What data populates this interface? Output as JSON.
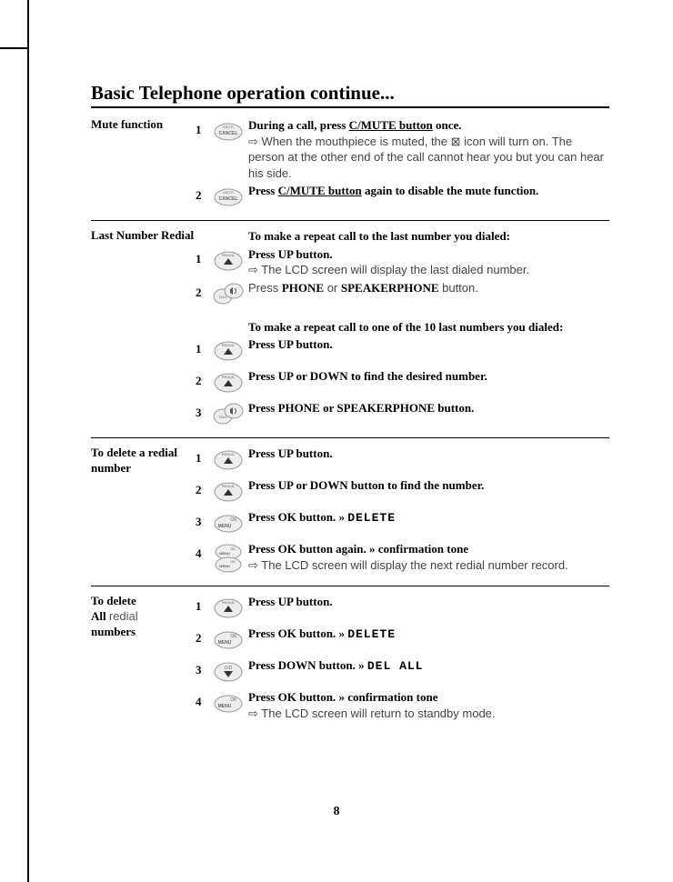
{
  "page": {
    "title": "Basic Telephone operation continue...",
    "number": "8"
  },
  "colors": {
    "text_body": "#444444",
    "text_bold": "#000000",
    "rule": "#000000",
    "bg": "#ffffff",
    "icon_stroke": "#888888"
  },
  "sections": [
    {
      "feature": "Mute function",
      "steps": [
        {
          "num": "1",
          "icon": "mute-cancel",
          "html": "<span class=\"bold\">During a call, press <span class=\"underline\">C/MUTE button</span> once.</span><br><span class=\"arrow\">⇨</span> When the mouthpiece is muted, the ⊠ icon will turn on. The person at the other end of the call cannot hear you but you can hear his side."
        },
        {
          "num": "2",
          "icon": "mute-cancel",
          "html": "<span class=\"bold\">Press <span class=\"underline\">C/MUTE button</span> again to disable the mute function.</span>"
        }
      ]
    },
    {
      "feature": "Last Number Redial",
      "headers_and_steps": [
        {
          "type": "header",
          "html": "To make a repeat call to the last number you dialed:"
        },
        {
          "type": "step",
          "num": "1",
          "icon": "redial-up",
          "html": "<span class=\"bold\">Press UP button.</span><br><span class=\"arrow\">⇨</span> The LCD screen will display the last dialed number."
        },
        {
          "type": "step",
          "num": "2",
          "icon": "talk-speaker",
          "html": "Press <span class=\"bold\">PHONE</span> or <span class=\"bold\">SPEAKERPHONE</span> button."
        },
        {
          "type": "spacer"
        },
        {
          "type": "header",
          "html": "To make a repeat call to one of the 10 last numbers you dialed:"
        },
        {
          "type": "step",
          "num": "1",
          "icon": "redial-up",
          "html": "<span class=\"bold\">Press UP  button.</span>"
        },
        {
          "type": "step",
          "num": "2",
          "icon": "redial-up",
          "html": "<span class=\"bold\">Press UP or DOWN to find the desired number.</span>"
        },
        {
          "type": "step",
          "num": "3",
          "icon": "talk-speaker",
          "html": "<span class=\"bold\">Press PHONE or SPEAKERPHONE button.</span>"
        }
      ]
    },
    {
      "feature": "To delete a redial number",
      "steps": [
        {
          "num": "1",
          "icon": "redial-up",
          "html": "<span class=\"bold\">Press UP button.</span>"
        },
        {
          "num": "2",
          "icon": "redial-up",
          "html": "<span class=\"bold\">Press UP or DOWN button to find the number.</span>"
        },
        {
          "num": "3",
          "icon": "ok-menu",
          "html": "<span class=\"bold\">Press OK button. </span><span class=\"guill\"> » </span> <span class=\"lcd\">DELETE</span>"
        },
        {
          "num": "4",
          "icon": "ok-menu-double",
          "html": "<span class=\"bold\">Press OK button again. </span><span class=\"guill\"> » </span><span class=\"bold\"> confirmation tone</span><br><span class=\"arrow\">⇨</span> The LCD screen will display the next redial number record."
        }
      ]
    },
    {
      "feature_html": "To delete<br>All <span style=\"font-family:Arial,sans-serif;font-weight:normal;color:#555;\">redial</span><br>numbers",
      "steps": [
        {
          "num": "1",
          "icon": "redial-up",
          "html": "<span class=\"bold\">Press UP button.</span>"
        },
        {
          "num": "2",
          "icon": "ok-menu",
          "html": "<span class=\"bold\">Press OK button. </span><span class=\"guill\"> » </span> <span class=\"lcd\">DELETE</span>"
        },
        {
          "num": "3",
          "icon": "cid-down",
          "html": "<span class=\"bold\">Press DOWN button. </span><span class=\"guill\"> » </span> <span class=\"lcd\">DEL ALL</span>"
        },
        {
          "num": "4",
          "icon": "ok-menu",
          "html": "<span class=\"bold\">Press OK button. </span><span class=\"guill\"> » </span><span class=\"bold\"> confirmation tone</span><br><span class=\"arrow\">⇨</span> The LCD screen will return to standby mode."
        }
      ]
    }
  ]
}
